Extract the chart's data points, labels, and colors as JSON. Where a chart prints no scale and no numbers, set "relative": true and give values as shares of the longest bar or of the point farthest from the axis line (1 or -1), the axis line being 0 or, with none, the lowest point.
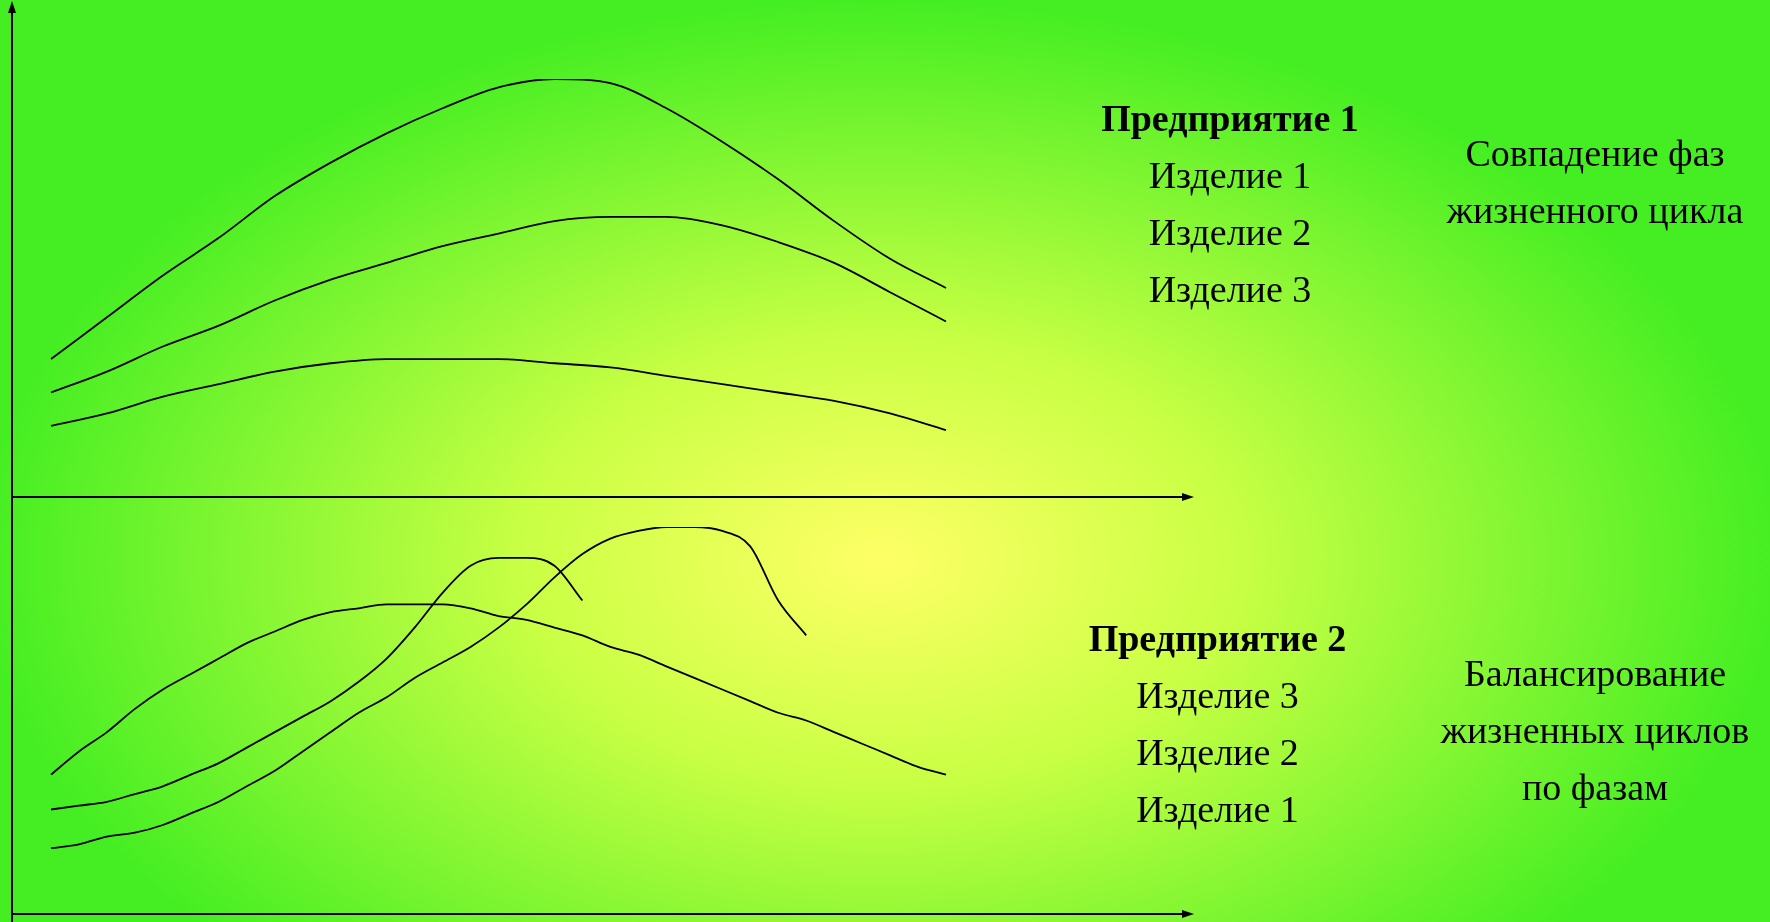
{
  "chart_data": [
    {
      "type": "line",
      "relative": true,
      "annotations": [
        "Предприятие 1",
        "Изделие 1",
        "Изделие 2",
        "Изделие 3",
        "Совпадение фаз жизненного цикла"
      ],
      "legend": false,
      "marker": "none",
      "line_style": "solid",
      "categories": [
        null,
        null,
        null,
        null,
        null,
        null,
        null,
        null,
        null,
        null,
        null,
        null,
        null,
        null,
        null,
        null,
        null
      ],
      "series": [
        {
          "color": "#000000",
          "values": [
            0.33,
            0.43,
            0.53,
            0.62,
            0.72,
            0.8,
            0.87,
            0.93,
            0.98,
            1.0,
            0.99,
            0.93,
            0.85,
            0.76,
            0.66,
            0.57,
            0.5
          ]
        },
        {
          "color": "#000000",
          "values": [
            0.25,
            0.3,
            0.36,
            0.41,
            0.47,
            0.52,
            0.56,
            0.6,
            0.63,
            0.66,
            0.67,
            0.67,
            0.65,
            0.61,
            0.56,
            0.49,
            0.42
          ]
        },
        {
          "color": "#000000",
          "values": [
            0.17,
            0.2,
            0.24,
            0.27,
            0.3,
            0.32,
            0.33,
            0.33,
            0.33,
            0.32,
            0.31,
            0.29,
            0.27,
            0.25,
            0.23,
            0.2,
            0.16
          ]
        }
      ]
    },
    {
      "type": "line",
      "relative": true,
      "annotations": [
        "Предприятие 2",
        "Изделие 3",
        "Изделие 2",
        "Изделие 1",
        "Балансирование жизненных циклов по фазам"
      ],
      "legend": false,
      "marker": "none",
      "line_style": "solid",
      "categories": [
        null,
        null,
        null,
        null,
        null,
        null,
        null,
        null,
        null,
        null,
        null,
        null,
        null,
        null,
        null,
        null,
        null,
        null,
        null,
        null,
        null,
        null,
        null,
        null,
        null,
        null,
        null,
        null,
        null,
        null,
        null,
        null,
        null
      ],
      "series": [
        {
          "color": "#000000",
          "values": [
            0.36,
            0.42,
            0.47,
            0.53,
            0.58,
            0.62,
            0.66,
            0.7,
            0.73,
            0.76,
            0.78,
            0.79,
            0.8,
            0.8,
            0.8,
            0.79,
            0.77,
            0.76,
            0.74,
            0.72,
            0.69,
            0.67,
            0.64,
            0.61,
            0.58,
            0.55,
            0.52,
            0.5,
            0.47,
            0.44,
            0.41,
            0.38,
            0.36
          ]
        },
        {
          "color": "#000000",
          "values": [
            0.27,
            0.28,
            0.29,
            0.31,
            0.33,
            0.36,
            0.39,
            0.43,
            0.47,
            0.51,
            0.55,
            0.6,
            0.66,
            0.74,
            0.83,
            0.9,
            0.92,
            0.92,
            0.9,
            0.81,
            null,
            null,
            null,
            null,
            null,
            null,
            null,
            null,
            null,
            null,
            null,
            null,
            null
          ]
        },
        {
          "color": "#000000",
          "values": [
            0.17,
            0.18,
            0.2,
            0.21,
            0.23,
            0.26,
            0.29,
            0.33,
            0.37,
            0.42,
            0.47,
            0.52,
            0.56,
            0.61,
            0.65,
            0.69,
            0.74,
            0.8,
            0.87,
            0.93,
            0.97,
            0.99,
            1.0,
            1.0,
            0.99,
            0.95,
            0.81,
            0.72,
            null,
            null,
            null,
            null,
            null
          ]
        }
      ]
    }
  ]
}
